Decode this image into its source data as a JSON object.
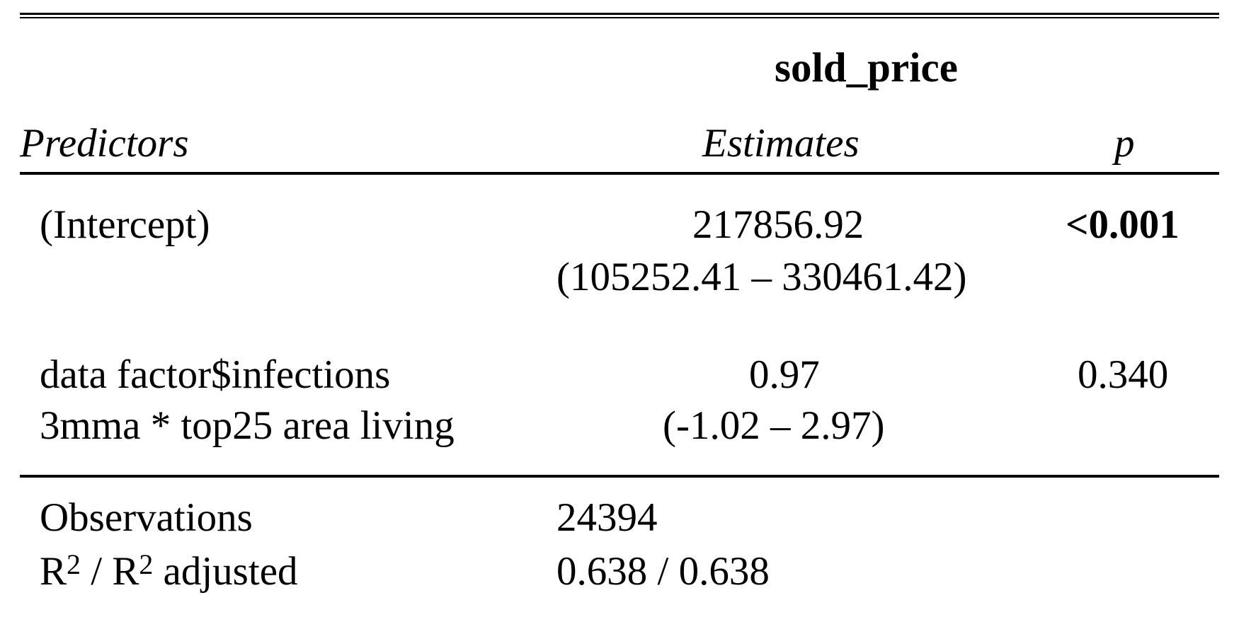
{
  "table": {
    "dependent_variable": "sold_price",
    "headers": {
      "predictors": "Predictors",
      "estimates": "Estimates",
      "p": "p"
    },
    "rows": [
      {
        "predictor_lines": [
          "(Intercept)"
        ],
        "estimate": "217856.92",
        "ci": "(105252.41 – 330461.42)",
        "p": "<0.001"
      },
      {
        "predictor_lines": [
          "data factor$infections",
          "3mma * top25 area living"
        ],
        "estimate": "0.97",
        "ci": "(-1.02 – 2.97)",
        "p": "0.340"
      }
    ],
    "stats": {
      "observations_label": "Observations",
      "observations": "24394",
      "r2_label_a": "R",
      "r2_label_sup1": "2",
      "r2_label_mid": " / R",
      "r2_label_sup2": "2",
      "r2_label_end": " adjusted",
      "r2_value": "0.638 / 0.638"
    }
  }
}
